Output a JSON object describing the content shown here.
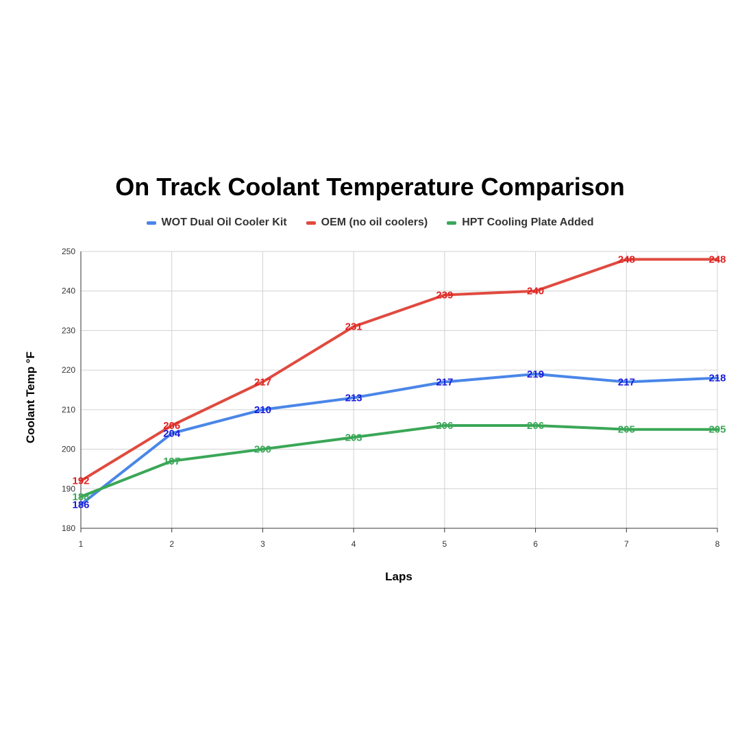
{
  "chart_data": {
    "type": "line",
    "title": "On Track Coolant Temperature Comparison",
    "xlabel": "Laps",
    "ylabel": "Coolant Temp °F",
    "x": [
      1,
      2,
      3,
      4,
      5,
      6,
      7,
      8
    ],
    "xlim": [
      1,
      8
    ],
    "ylim": [
      180,
      250
    ],
    "yticks": [
      180,
      190,
      200,
      210,
      220,
      230,
      240,
      250
    ],
    "grid": true,
    "legend_position": "top",
    "series": [
      {
        "name": "WOT Dual Oil Cooler Kit",
        "color": "#4a86e8",
        "label_color": "#1a1adb",
        "values": [
          186,
          204,
          210,
          213,
          217,
          219,
          217,
          218
        ]
      },
      {
        "name": "OEM (no oil coolers)",
        "color": "#e04a3f",
        "label_color": "#e02222",
        "values": [
          192,
          206,
          217,
          231,
          239,
          240,
          248,
          248
        ]
      },
      {
        "name": "HPT Cooling Plate Added",
        "color": "#3aa757",
        "label_color": "#3aa757",
        "values": [
          188,
          197,
          200,
          203,
          206,
          206,
          205,
          205
        ]
      }
    ]
  }
}
